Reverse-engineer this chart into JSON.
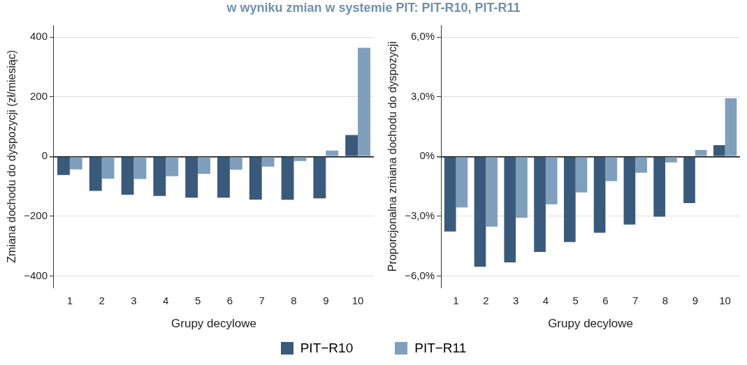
{
  "chart_data": [
    {
      "type": "bar",
      "title": "w wyniku zmian w systemie PIT: PIT-R10, PIT-R11",
      "xlabel": "Grupy decylowe",
      "ylabel": "Zmiana dochodu do dyspozycji (zł/miesiąc)",
      "categories": [
        "1",
        "2",
        "3",
        "4",
        "5",
        "6",
        "7",
        "8",
        "9",
        "10"
      ],
      "series": [
        {
          "name": "PIT−R10",
          "color": "#3a5a7c",
          "values": [
            -62,
            -115,
            -128,
            -132,
            -138,
            -138,
            -144,
            -145,
            -140,
            72
          ]
        },
        {
          "name": "PIT−R11",
          "color": "#7f9fbc",
          "values": [
            -43,
            -74,
            -75,
            -66,
            -58,
            -44,
            -34,
            -15,
            20,
            364
          ]
        }
      ],
      "ylim": [
        -440,
        440
      ],
      "yticks": [
        {
          "value": -400,
          "label": "−400"
        },
        {
          "value": -200,
          "label": "−200"
        },
        0,
        200,
        400
      ],
      "grid": "y",
      "legend": "bottom"
    },
    {
      "type": "bar",
      "xlabel": "Grupy decylowe",
      "ylabel": "Proporcjonalna zmiana dochodu do dyspozycji",
      "categories": [
        "1",
        "2",
        "3",
        "4",
        "5",
        "6",
        "7",
        "8",
        "9",
        "10"
      ],
      "series": [
        {
          "name": "PIT−R10",
          "color": "#3a5a7c",
          "values": [
            -3.77,
            -5.54,
            -5.32,
            -4.79,
            -4.29,
            -3.83,
            -3.42,
            -3.02,
            -2.34,
            0.57
          ]
        },
        {
          "name": "PIT−R11",
          "color": "#7f9fbc",
          "values": [
            -2.56,
            -3.52,
            -3.07,
            -2.4,
            -1.8,
            -1.23,
            -0.81,
            -0.3,
            0.33,
            2.93
          ]
        }
      ],
      "ylim": [
        -6.6,
        6.6
      ],
      "yticks": [
        {
          "value": -6,
          "label": "−6,0%"
        },
        {
          "value": -3,
          "label": "−3,0%"
        },
        {
          "value": 0,
          "label": "0%"
        },
        {
          "value": 3,
          "label": "3,0%"
        },
        {
          "value": 6,
          "label": "6,0%"
        }
      ],
      "grid": "y",
      "legend": "bottom"
    }
  ]
}
